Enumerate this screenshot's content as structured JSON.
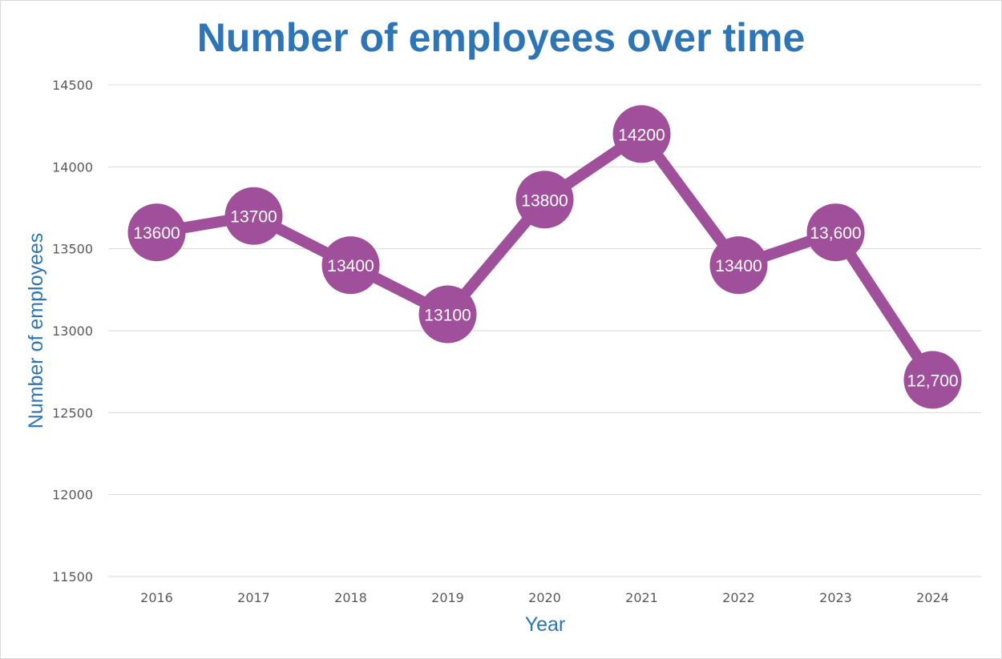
{
  "chart_data": {
    "type": "line",
    "title": "Number of employees over time",
    "xlabel": "Year",
    "ylabel": "Number of employees",
    "categories": [
      "2016",
      "2017",
      "2018",
      "2019",
      "2020",
      "2021",
      "2022",
      "2023",
      "2024"
    ],
    "values": [
      13600,
      13700,
      13400,
      13100,
      13800,
      14200,
      13400,
      13600,
      12700
    ],
    "data_labels": [
      "13600",
      "13700",
      "13400",
      "13100",
      "13800",
      "14200",
      "13400",
      "13,600",
      "12,700"
    ],
    "ylim": [
      11500,
      14500
    ],
    "yticks": [
      11500,
      12000,
      12500,
      13000,
      13500,
      14000,
      14500
    ],
    "grid": true,
    "legend": "none",
    "colors": {
      "series": "#a0509a",
      "title": "#2e75b6",
      "grid": "#d9d9d9",
      "tick_text": "#595959"
    }
  }
}
